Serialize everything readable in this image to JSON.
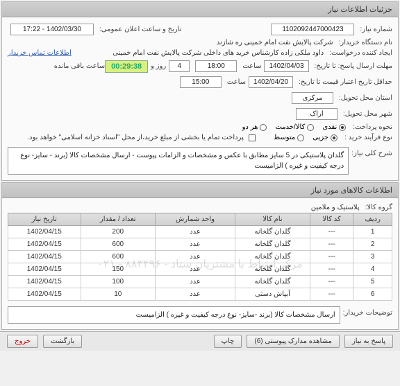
{
  "panel1": {
    "title": "جزئیات اطلاعات نیاز",
    "need_no_label": "شماره نیاز:",
    "need_no": "1102092447000423",
    "announce_label": "تاریخ و ساعت اعلان عمومی:",
    "announce": "1402/03/30 - 17:22",
    "buyer_org_label": "نام دستگاه خریدار:",
    "buyer_org": "شرکت پالایش نفت امام خمینی  ره  شازند",
    "requester_label": "ایجاد کننده درخواست:",
    "requester": "داود  ملکی زاده کارشناس خرید های داخلی  شرکت پالایش نفت امام خمینی",
    "contact_link": "اطلاعات تماس خریدار",
    "deadline_reply_label": "مهلت ارسال پاسخ: تا تاریخ:",
    "deadline_date": "1402/04/03",
    "time_label": "ساعت",
    "deadline_time": "18:00",
    "days_label": "روز و",
    "days": "4",
    "timer": "00:29:38",
    "timer_label": "ساعت باقی مانده",
    "credit_label": "حداقل تاریخ اعتبار قیمت تا تاریخ:",
    "credit_date": "1402/04/20",
    "credit_time": "15:00",
    "province_label": "استان محل تحویل:",
    "province": "مرکزی",
    "city_label": "شهر محل تحویل:",
    "city": "اراک",
    "pay_method_label": "نحوه پرداخت:",
    "pay_cash": "نقدی",
    "pay_goods": "کالا/خدمت",
    "pay_both": "هر دو",
    "process_label": "نوع فرآیند خرید :",
    "proc_partial": "جزیی",
    "proc_middle": "متوسط",
    "settle_note": "پرداخت تمام یا بخشی از مبلغ خرید،از محل \"اسناد خزانه اسلامی\" خواهد بود.",
    "need_summary_label": "شرح کلی نیاز:",
    "need_summary": "گلدان پلاستیکی در 5 سایز مطابق با عکس و مشخصات و الزامات پیوست - ارسال مشخصات کالا (برند - سایز- نوع درجه کیفیت و غیره ) الزامیست"
  },
  "panel2": {
    "title": "اطلاعات کالاهای مورد نیاز",
    "group_label": "گروه کالا:",
    "group_value": "پلاستیک و ملامین",
    "watermark": "مرکز ارتباط با مشتریان ستاد - ۸۸۳۴۹۶ - ۰۲۱",
    "columns": [
      "ردیف",
      "کد کالا",
      "نام کالا",
      "واحد شمارش",
      "تعداد / مقدار",
      "تاریخ نیاز"
    ],
    "rows": [
      [
        "1",
        "---",
        "گلدان گلخانه",
        "عدد",
        "200",
        "1402/04/15"
      ],
      [
        "2",
        "---",
        "گلدان گلخانه",
        "عدد",
        "600",
        "1402/04/15"
      ],
      [
        "3",
        "---",
        "گلدان گلخانه",
        "عدد",
        "600",
        "1402/04/15"
      ],
      [
        "4",
        "---",
        "گلدان گلخانه",
        "عدد",
        "150",
        "1402/04/15"
      ],
      [
        "5",
        "---",
        "گلدان گلخانه",
        "عدد",
        "100",
        "1402/04/15"
      ],
      [
        "6",
        "---",
        "آبپاش دستی",
        "عدد",
        "10",
        "1402/04/15"
      ]
    ],
    "buyer_note_label": "توضیحات خریدار:",
    "buyer_note": "ارسال مشخصات کالا (برند -سایز- نوع درجه کیفیت و غیره ) الزامیست"
  },
  "buttons": {
    "reply": "پاسخ به نیاز",
    "attachments": "مشاهده مدارک پیوستی (6)",
    "print": "چاپ",
    "back": "بازگشت",
    "exit": "خروج"
  }
}
